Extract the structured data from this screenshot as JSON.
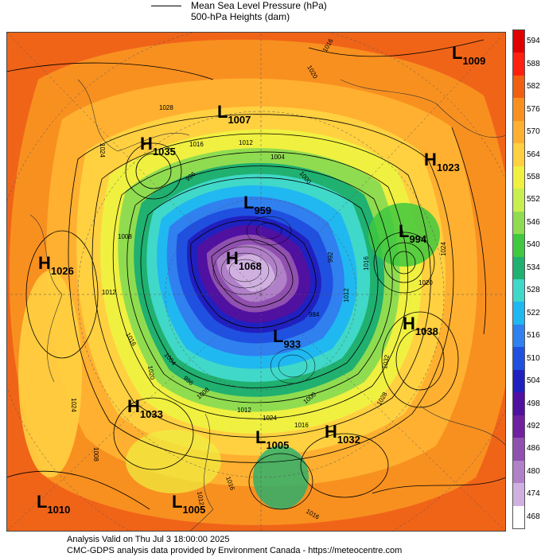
{
  "legend": {
    "line1": "Mean Sea Level Pressure (hPa)",
    "line2": "500-hPa Heights (dam)"
  },
  "colorbar": {
    "labels": [
      "594",
      "588",
      "582",
      "576",
      "570",
      "564",
      "558",
      "552",
      "546",
      "540",
      "534",
      "528",
      "522",
      "516",
      "510",
      "504",
      "498",
      "492",
      "486",
      "480",
      "474",
      "468"
    ],
    "colors": [
      "#e00000",
      "#ff2010",
      "#f06010",
      "#f89020",
      "#ffb030",
      "#ffd040",
      "#f0f040",
      "#c8ee50",
      "#90dc50",
      "#40c840",
      "#20b070",
      "#40d8c8",
      "#20b8f0",
      "#3080f0",
      "#2050e0",
      "#2020c0",
      "#5010a0",
      "#7020a0",
      "#9050b0",
      "#b080c8",
      "#d0b0e0",
      "#ffffff"
    ]
  },
  "centers": [
    {
      "type": "L",
      "value": "1009"
    },
    {
      "type": "L",
      "value": "1007"
    },
    {
      "type": "H",
      "value": "1035"
    },
    {
      "type": "H",
      "value": "1023"
    },
    {
      "type": "L",
      "value": "959"
    },
    {
      "type": "L",
      "value": "994"
    },
    {
      "type": "H",
      "value": "1026"
    },
    {
      "type": "H",
      "value": "1068"
    },
    {
      "type": "H",
      "value": "1038"
    },
    {
      "type": "L",
      "value": "933"
    },
    {
      "type": "H",
      "value": "1033"
    },
    {
      "type": "L",
      "value": "1005"
    },
    {
      "type": "H",
      "value": "1032"
    },
    {
      "type": "L",
      "value": "1010"
    },
    {
      "type": "L",
      "value": "1005"
    }
  ],
  "isobar_labels": [
    "1016",
    "1020",
    "1028",
    "1024",
    "1016",
    "1012",
    "1004",
    "1000",
    "996",
    "1008",
    "1012",
    "1016",
    "1020",
    "1024",
    "1028",
    "1032",
    "1012",
    "1016",
    "1024",
    "1020",
    "1016",
    "1024",
    "1008",
    "1012",
    "1016",
    "1000",
    "992",
    "984",
    "1004",
    "996",
    "1008",
    "1012",
    "1016"
  ],
  "footer": {
    "line1": "Analysis Valid on Thu Jul  3 18:00:00 2025",
    "line2": "CMC-GDPS analysis data provided by Environment Canada - https://meteocentre.com"
  }
}
